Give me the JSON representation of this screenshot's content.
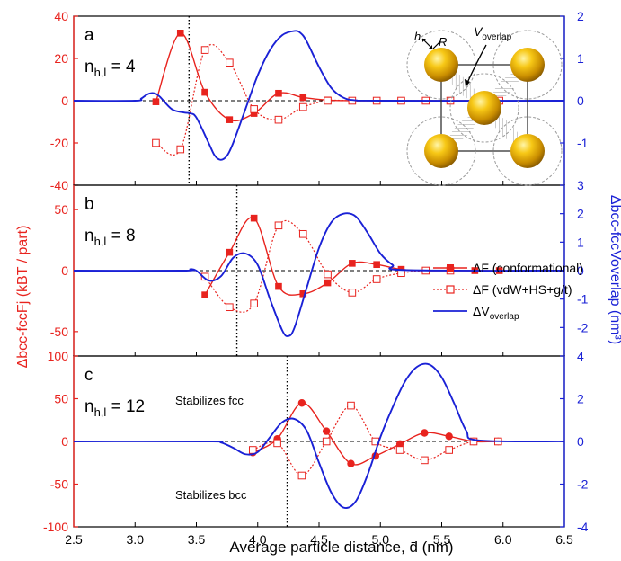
{
  "figure": {
    "xlabel": "Average particle distance, d̄ (nm)",
    "ylabel_left": "Δbcc-fccFj (kBT / part)",
    "ylabel_right": "Δbcc-fccVoverlap (nm³)",
    "colors": {
      "red": "#e8231e",
      "blue": "#1a21d6",
      "black": "#000000"
    }
  },
  "legend": {
    "conformational": "ΔF (conformational)",
    "vdw": "ΔF (vdW+HS+g/t)",
    "overlap": "ΔVoverlap"
  },
  "inset": {
    "h": "h",
    "R": "R",
    "label": "Voverlap"
  },
  "chart_data": [
    {
      "type": "line",
      "panel": "a",
      "label": "nh,l = 4",
      "xlim": [
        2.5,
        6.5
      ],
      "ylim_left": [
        -40,
        40
      ],
      "ylim_right": [
        -2,
        2
      ],
      "yticks_left": [
        -40,
        -20,
        0,
        20,
        40
      ],
      "yticks_right": [
        -1,
        0,
        1,
        2
      ],
      "vline": 3.44,
      "marker": "square",
      "series": [
        {
          "name": "ΔF (conformational)",
          "axis": "left",
          "x": [
            3.17,
            3.37,
            3.57,
            3.77,
            3.97,
            4.17,
            4.37,
            4.57,
            4.77,
            4.97,
            5.17,
            5.37,
            5.57,
            5.77,
            5.97
          ],
          "y": [
            -0.5,
            32,
            4,
            -9,
            -6,
            3.5,
            1.5,
            0.3,
            0,
            0,
            0,
            0,
            0,
            0,
            0
          ]
        },
        {
          "name": "ΔF (vdW+HS+g/t)",
          "axis": "left",
          "x": [
            3.17,
            3.37,
            3.57,
            3.77,
            3.97,
            4.17,
            4.37,
            4.57,
            4.77,
            4.97,
            5.17,
            5.37,
            5.57,
            5.77,
            5.97
          ],
          "y": [
            -20,
            -23,
            24,
            18,
            -4,
            -9,
            -3,
            0,
            0,
            0,
            0,
            0,
            0,
            0,
            0
          ]
        },
        {
          "name": "ΔVoverlap",
          "axis": "right",
          "x": [
            2.5,
            3.0,
            3.05,
            3.1,
            3.15,
            3.2,
            3.3,
            3.4,
            3.45,
            3.5,
            3.6,
            3.65,
            3.7,
            3.75,
            3.8,
            3.9,
            4.0,
            4.1,
            4.2,
            4.3,
            4.35,
            4.4,
            4.5,
            4.6,
            4.7,
            4.8,
            5.0,
            6.5
          ],
          "y": [
            0,
            0,
            0.05,
            0.15,
            0.18,
            0.1,
            -0.2,
            -0.28,
            -0.3,
            -0.4,
            -1.0,
            -1.3,
            -1.4,
            -1.3,
            -1.0,
            -0.2,
            0.6,
            1.2,
            1.55,
            1.65,
            1.6,
            1.4,
            0.8,
            0.3,
            0.07,
            0.01,
            0,
            0
          ]
        }
      ]
    },
    {
      "type": "line",
      "panel": "b",
      "label": "nh,l = 8",
      "xlim": [
        2.5,
        6.5
      ],
      "ylim_left": [
        -70,
        70
      ],
      "ylim_right": [
        -3,
        3
      ],
      "yticks_left": [
        -50,
        0,
        50
      ],
      "yticks_right": [
        -2,
        -1,
        0,
        1,
        2,
        3
      ],
      "vline": 3.83,
      "marker": "square",
      "series": [
        {
          "name": "ΔF (conformational)",
          "axis": "left",
          "x": [
            3.57,
            3.77,
            3.97,
            4.17,
            4.37,
            4.57,
            4.77,
            4.97,
            5.17,
            5.37,
            5.57,
            5.77,
            5.97
          ],
          "y": [
            -20,
            15,
            43,
            -13,
            -19,
            -10,
            6,
            5,
            1,
            0,
            0,
            0,
            0
          ]
        },
        {
          "name": "ΔF (vdW+HS+g/t)",
          "axis": "left",
          "x": [
            3.57,
            3.77,
            3.97,
            4.17,
            4.37,
            4.57,
            4.77,
            4.97,
            5.17,
            5.37,
            5.57
          ],
          "y": [
            -5,
            -30,
            -27,
            37,
            30,
            -3,
            -18,
            -7,
            -2,
            0,
            0
          ]
        },
        {
          "name": "ΔVoverlap",
          "axis": "right",
          "x": [
            2.5,
            3.4,
            3.45,
            3.5,
            3.6,
            3.7,
            3.8,
            3.9,
            4.0,
            4.1,
            4.2,
            4.25,
            4.3,
            4.4,
            4.5,
            4.6,
            4.7,
            4.8,
            4.9,
            5.0,
            5.1,
            5.2,
            6.5
          ],
          "y": [
            0,
            0,
            0.05,
            0,
            -0.35,
            -0.2,
            0.45,
            0.6,
            0.2,
            -1.0,
            -2.1,
            -2.3,
            -2.0,
            -0.6,
            0.8,
            1.7,
            2.0,
            1.9,
            1.3,
            0.6,
            0.2,
            0.02,
            0
          ]
        }
      ]
    },
    {
      "type": "line",
      "panel": "c",
      "label": "nh,l = 12",
      "xlim": [
        2.5,
        6.5
      ],
      "ylim_left": [
        -100,
        100
      ],
      "ylim_right": [
        -4,
        4
      ],
      "yticks_left": [
        -100,
        -50,
        0,
        50,
        100
      ],
      "yticks_right": [
        -4,
        -2,
        0,
        2,
        4
      ],
      "vline": 4.24,
      "marker": "circle",
      "annotations": [
        "Stabilizes fcc",
        "Stabilizes bcc"
      ],
      "series": [
        {
          "name": "ΔF (conformational)",
          "axis": "left",
          "x": [
            3.96,
            4.16,
            4.36,
            4.56,
            4.76,
            4.96,
            5.16,
            5.36,
            5.56,
            5.76,
            5.96
          ],
          "y": [
            -13,
            3,
            45,
            12,
            -26,
            -17,
            -3,
            10,
            6,
            0,
            0
          ]
        },
        {
          "name": "ΔF (vdW+HS+g/t)",
          "axis": "left",
          "x": [
            3.96,
            4.16,
            4.36,
            4.56,
            4.76,
            4.96,
            5.16,
            5.36,
            5.56,
            5.76,
            5.96
          ],
          "y": [
            -10,
            -2,
            -40,
            0,
            42,
            0,
            -10,
            -22,
            -10,
            0,
            0
          ]
        },
        {
          "name": "ΔVoverlap",
          "axis": "right",
          "x": [
            2.5,
            3.6,
            3.7,
            3.8,
            3.9,
            4.0,
            4.1,
            4.2,
            4.3,
            4.4,
            4.5,
            4.6,
            4.7,
            4.8,
            4.9,
            5.0,
            5.1,
            5.2,
            5.3,
            5.4,
            5.5,
            5.6,
            5.7,
            5.8,
            6.5
          ],
          "y": [
            0,
            0,
            -0.05,
            -0.3,
            -0.6,
            -0.5,
            0.2,
            0.9,
            1.05,
            0.5,
            -1.0,
            -2.4,
            -3.1,
            -2.8,
            -1.5,
            0.2,
            1.6,
            2.8,
            3.5,
            3.6,
            3.0,
            1.8,
            0.5,
            0.05,
            0
          ]
        }
      ]
    }
  ],
  "xticks": [
    2.5,
    3.0,
    3.5,
    4.0,
    4.5,
    5.0,
    5.5,
    6.0,
    6.5
  ]
}
